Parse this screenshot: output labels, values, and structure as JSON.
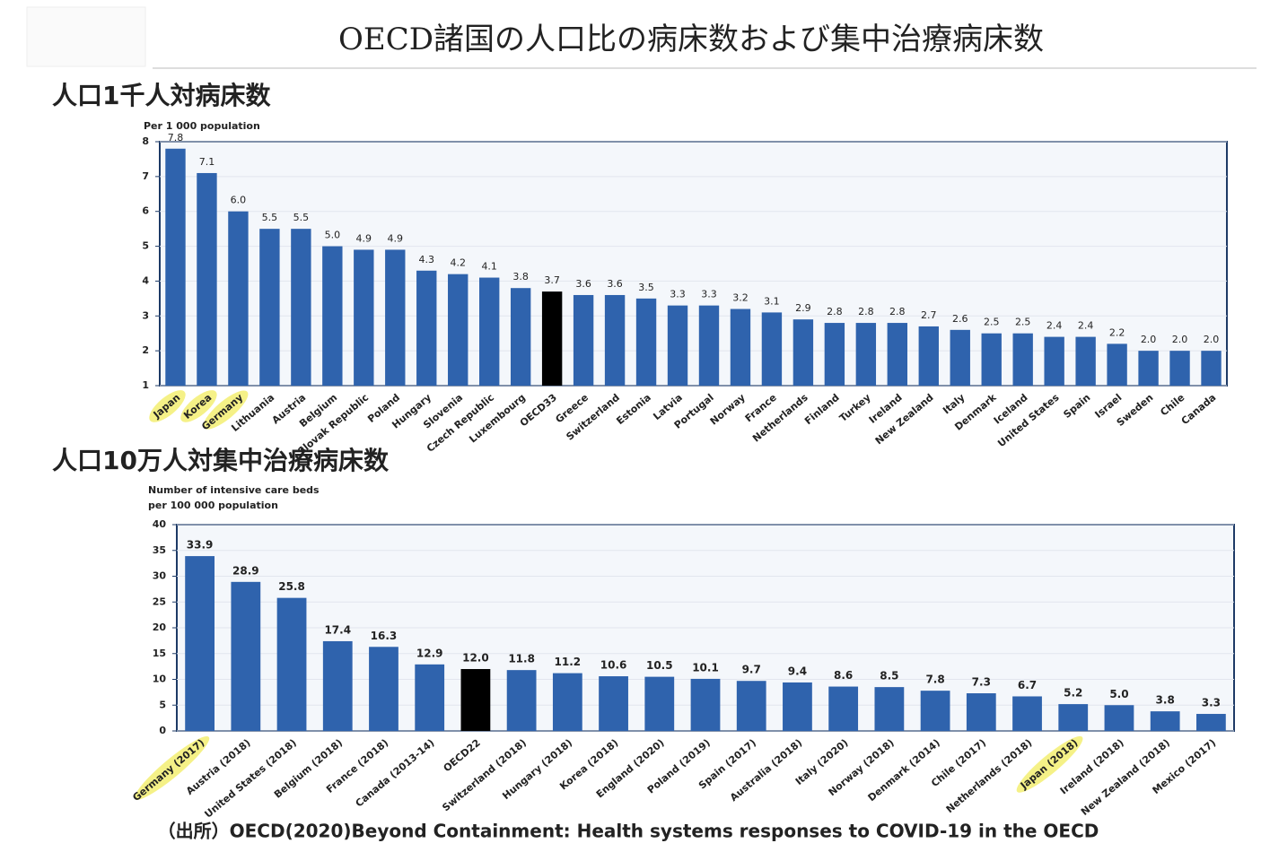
{
  "title": "OECD諸国の人口比の病床数および集中治療病床数",
  "source": "（出所）OECD(2020)Beyond Containment: Health systems responses to COVID-19 in the OECD",
  "chart_data": [
    {
      "type": "bar",
      "heading": "人口1千人対病床数",
      "ylabel": [
        "Per 1 000 population"
      ],
      "categories": [
        "Japan",
        "Korea",
        "Germany",
        "Lithuania",
        "Austria",
        "Belgium",
        "Slovak Republic",
        "Poland",
        "Hungary",
        "Slovenia",
        "Czech Republic",
        "Luxembourg",
        "OECD33",
        "Greece",
        "Switzerland",
        "Estonia",
        "Latvia",
        "Portugal",
        "Norway",
        "France",
        "Netherlands",
        "Finland",
        "Turkey",
        "Ireland",
        "New Zealand",
        "Italy",
        "Denmark",
        "Iceland",
        "United States",
        "Spain",
        "Israel",
        "Sweden",
        "Chile",
        "Canada"
      ],
      "values": [
        7.8,
        7.1,
        6.0,
        5.5,
        5.5,
        5.0,
        4.9,
        4.9,
        4.3,
        4.2,
        4.1,
        3.8,
        3.7,
        3.6,
        3.6,
        3.5,
        3.3,
        3.3,
        3.2,
        3.1,
        2.9,
        2.8,
        2.8,
        2.8,
        2.7,
        2.6,
        2.5,
        2.5,
        2.4,
        2.4,
        2.2,
        2.0,
        2.0,
        2.0
      ],
      "value_labels": [
        "7.8",
        "7.1",
        "6.0",
        "5.5",
        "5.5",
        "5.0",
        "4.9",
        "4.9",
        "4.3",
        "4.2",
        "4.1",
        "3.8",
        "3.7",
        "3.6",
        "3.6",
        "3.5",
        "3.3",
        "3.3",
        "3.2",
        "3.1",
        "2.9",
        "2.8",
        "2.8",
        "2.8",
        "2.7",
        "2.6",
        "2.5",
        "2.5",
        "2.4",
        "2.4",
        "2.2",
        "2.0",
        "2.0",
        "2.0"
      ],
      "colors": [
        "#2f63ad",
        "#2f63ad",
        "#2f63ad",
        "#2f63ad",
        "#2f63ad",
        "#2f63ad",
        "#2f63ad",
        "#2f63ad",
        "#2f63ad",
        "#2f63ad",
        "#2f63ad",
        "#2f63ad",
        "#000000",
        "#2f63ad",
        "#2f63ad",
        "#2f63ad",
        "#2f63ad",
        "#2f63ad",
        "#2f63ad",
        "#2f63ad",
        "#2f63ad",
        "#2f63ad",
        "#2f63ad",
        "#2f63ad",
        "#2f63ad",
        "#2f63ad",
        "#2f63ad",
        "#2f63ad",
        "#2f63ad",
        "#2f63ad",
        "#2f63ad",
        "#2f63ad",
        "#2f63ad",
        "#2f63ad"
      ],
      "highlighted_categories": [
        "Japan",
        "Korea",
        "Germany"
      ],
      "highlight_color": "#f3ee72",
      "ylim": [
        1,
        8
      ],
      "yticks": [
        1,
        2,
        3,
        4,
        5,
        6,
        7,
        8
      ],
      "grid": true
    },
    {
      "type": "bar",
      "heading": "人口10万人対集中治療病床数",
      "ylabel": [
        "Number of intensive care beds",
        "per 100 000 population"
      ],
      "categories": [
        "Germany (2017)",
        "Austria (2018)",
        "United States (2018)",
        "Belgium (2018)",
        "France (2018)",
        "Canada (2013-14)",
        "OECD22",
        "Switzerland (2018)",
        "Hungary (2018)",
        "Korea (2018)",
        "England (2020)",
        "Poland (2019)",
        "Spain (2017)",
        "Australia (2018)",
        "Italy (2020)",
        "Norway (2018)",
        "Denmark (2014)",
        "Chile (2017)",
        "Netherlands (2018)",
        "Japan (2018)",
        "Ireland (2018)",
        "New Zealand (2018)",
        "Mexico (2017)"
      ],
      "values": [
        33.9,
        28.9,
        25.8,
        17.4,
        16.3,
        12.9,
        12.0,
        11.8,
        11.2,
        10.6,
        10.5,
        10.1,
        9.7,
        9.4,
        8.6,
        8.5,
        7.8,
        7.3,
        6.7,
        5.2,
        5.0,
        3.8,
        3.3
      ],
      "value_labels": [
        "33.9",
        "28.9",
        "25.8",
        "17.4",
        "16.3",
        "12.9",
        "12.0",
        "11.8",
        "11.2",
        "10.6",
        "10.5",
        "10.1",
        "9.7",
        "9.4",
        "8.6",
        "8.5",
        "7.8",
        "7.3",
        "6.7",
        "5.2",
        "5.0",
        "3.8",
        "3.3"
      ],
      "colors": [
        "#2f63ad",
        "#2f63ad",
        "#2f63ad",
        "#2f63ad",
        "#2f63ad",
        "#2f63ad",
        "#000000",
        "#2f63ad",
        "#2f63ad",
        "#2f63ad",
        "#2f63ad",
        "#2f63ad",
        "#2f63ad",
        "#2f63ad",
        "#2f63ad",
        "#2f63ad",
        "#2f63ad",
        "#2f63ad",
        "#2f63ad",
        "#2f63ad",
        "#2f63ad",
        "#2f63ad",
        "#2f63ad"
      ],
      "highlighted_categories": [
        "Germany (2017)",
        "Japan (2018)"
      ],
      "highlight_color": "#f3ee72",
      "ylim": [
        0,
        40
      ],
      "yticks": [
        0,
        5,
        10,
        15,
        20,
        25,
        30,
        35,
        40
      ],
      "grid": true
    }
  ]
}
